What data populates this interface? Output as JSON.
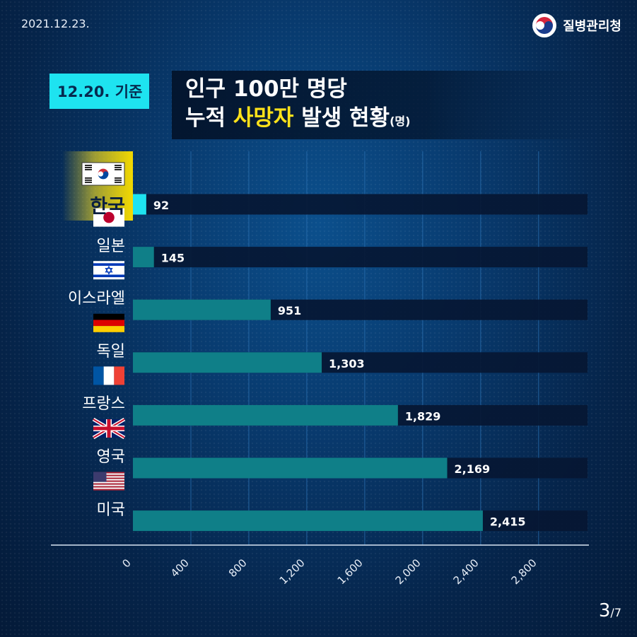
{
  "header": {
    "date": "2021.12.23.",
    "agency": "질병관리청",
    "basis": "12.20. 기준",
    "title_line1": "인구 100만 명당",
    "title_line2_pre": "누적 ",
    "title_line2_highlight": "사망자",
    "title_line2_post": " 발생 현황",
    "title_unit": "(명)"
  },
  "page": {
    "current": "3",
    "total": "/7"
  },
  "colors": {
    "accent_cyan": "#1ee3f0",
    "highlight_yellow": "#ffe21a",
    "bar_teal": "#0f7f88",
    "track_navy": "#061733"
  },
  "chart_data": {
    "type": "bar",
    "orientation": "horizontal",
    "title": "인구 100만 명당 누적 사망자 발생 현황(명)",
    "categories": [
      "한국",
      "일본",
      "이스라엘",
      "독일",
      "프랑스",
      "영국",
      "미국"
    ],
    "flags": [
      "korea-flag-icon",
      "japan-flag-icon",
      "israel-flag-icon",
      "germany-flag-icon",
      "france-flag-icon",
      "uk-flag-icon",
      "usa-flag-icon"
    ],
    "values": [
      92,
      145,
      951,
      1303,
      1829,
      2169,
      2415
    ],
    "value_labels": [
      "92",
      "145",
      "951",
      "1,303",
      "1,829",
      "2,169",
      "2,415"
    ],
    "highlight_category": "한국",
    "xlim": [
      0,
      3200
    ],
    "ticks": [
      0,
      400,
      800,
      1200,
      1600,
      2000,
      2400,
      2800
    ],
    "tick_labels": [
      "0",
      "400",
      "800",
      "1,200",
      "1,600",
      "2,000",
      "2,400",
      "2,800"
    ],
    "grid": true
  }
}
